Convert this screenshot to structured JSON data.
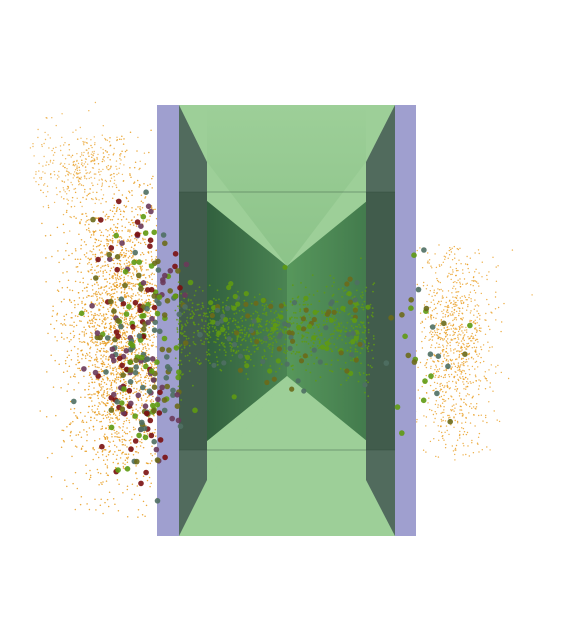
{
  "colors": {
    "background": "#ffffff",
    "electrode": "#9f9fcf",
    "electrode_edge": "#8c8cc0",
    "pore_light": "#9dcf98",
    "pore_mid": "#4f8f55",
    "pore_dark": "#2f5c3c",
    "cone_shade": "#3f6f4d",
    "rim": "#516b5d",
    "orange_particles": "#e89b1c",
    "green_particles": "#5f9a12",
    "olive_particles": "#6b6a1a",
    "purple_particles": "#6a3a5a",
    "slate_particles": "#4f6f63",
    "dark_red_particles": "#7a1010"
  },
  "particle_clouds": [
    {
      "label": "left-orange-cloud",
      "color": "orange_particles"
    },
    {
      "label": "right-orange-cloud",
      "color": "orange_particles"
    },
    {
      "label": "pore-green-stream",
      "color": "green_particles"
    }
  ]
}
